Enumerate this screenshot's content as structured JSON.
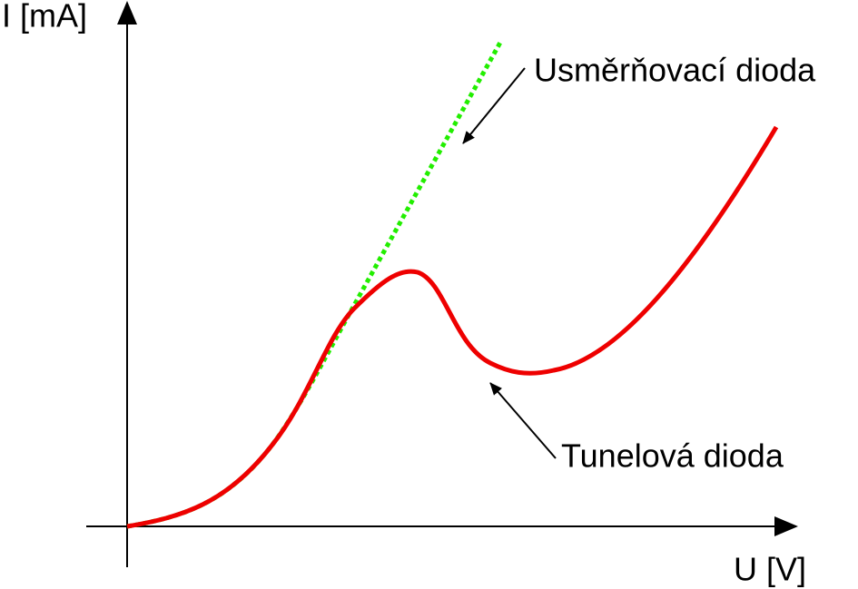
{
  "axes": {
    "y_label": "I [mA]",
    "x_label": "U [V]"
  },
  "curves": [
    {
      "label": "Usměrňovací dioda"
    },
    {
      "label": "Tunelová dioda"
    }
  ]
}
